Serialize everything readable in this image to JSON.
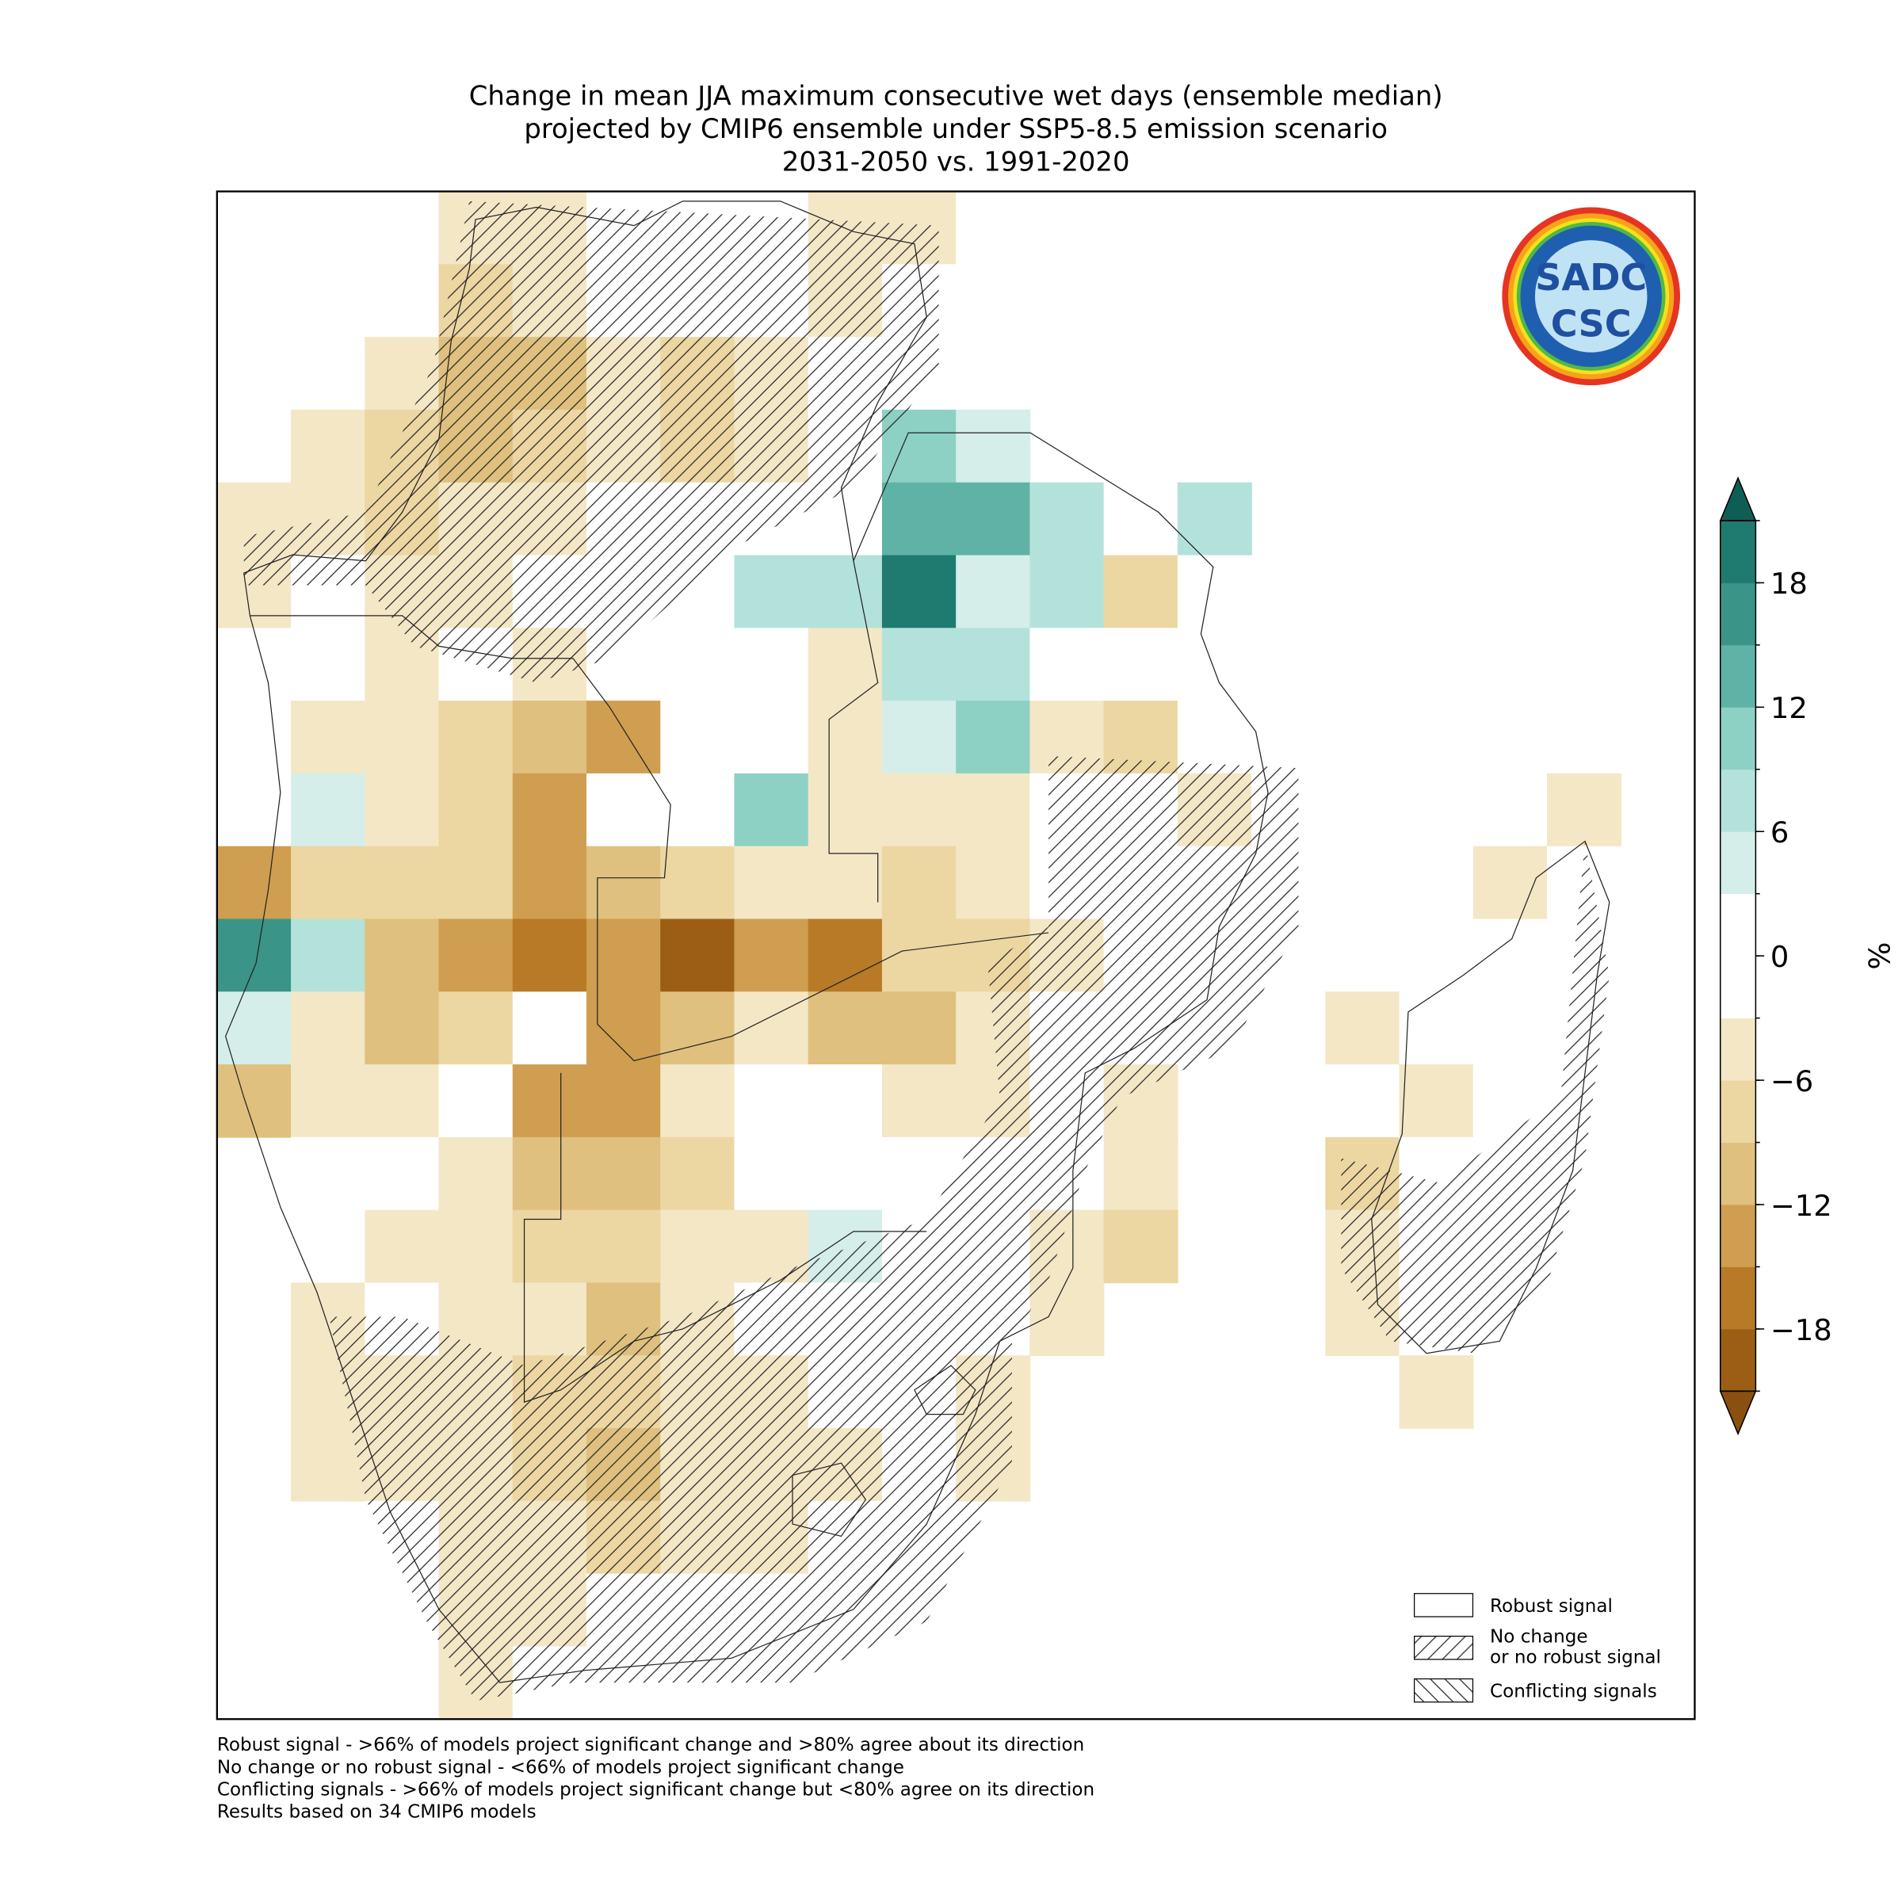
{
  "map": {
    "title": [
      "Change in mean JJA maximum consecutive wet days (ensemble median)",
      "projected by CMIP6 ensemble under SSP5-8.5 emission scenario",
      "2031-2050 vs. 1991-2020"
    ],
    "logo": {
      "top": "SADC",
      "bottom": "CSC"
    },
    "grid": {
      "rows": [
        [
          null,
          null,
          null,
          -6,
          -6,
          0,
          -3,
          -3,
          -6,
          -6,
          -3,
          null,
          null,
          null,
          null,
          null,
          null,
          null,
          null,
          null
        ],
        [
          null,
          null,
          null,
          -8,
          -6,
          0,
          -3,
          -3,
          -6,
          -3,
          -3,
          null,
          null,
          null,
          null,
          null,
          null,
          null,
          null,
          null
        ],
        [
          null,
          null,
          -6,
          -12,
          -10,
          -6,
          -8,
          -6,
          0,
          -3,
          -3,
          null,
          null,
          null,
          null,
          null,
          null,
          null,
          null,
          null
        ],
        [
          null,
          -6,
          -8,
          -10,
          -8,
          -6,
          -8,
          -6,
          0,
          9,
          3,
          null,
          null,
          null,
          null,
          null,
          null,
          null,
          null,
          null
        ],
        [
          -6,
          -6,
          -8,
          -6,
          -6,
          -3,
          0,
          0,
          0,
          12,
          12,
          6,
          0,
          6,
          null,
          null,
          null,
          null,
          null,
          null
        ],
        [
          -6,
          -3,
          -6,
          -6,
          -3,
          -3,
          0,
          6,
          6,
          20,
          3,
          6,
          -9,
          -3,
          null,
          null,
          null,
          null,
          null,
          null
        ],
        [
          -3,
          -3,
          -6,
          -3,
          -6,
          -3,
          0,
          0,
          -6,
          6,
          6,
          0,
          -3,
          0,
          -3,
          null,
          null,
          null,
          null,
          null
        ],
        [
          -3,
          -6,
          -6,
          -9,
          -12,
          -15,
          -3,
          0,
          -6,
          3,
          9,
          -6,
          -9,
          -3,
          -3,
          null,
          null,
          null,
          null,
          null
        ],
        [
          -3,
          3,
          -6,
          -9,
          -15,
          -3,
          0,
          9,
          -6,
          -6,
          -6,
          -3,
          -3,
          -6,
          -3,
          null,
          null,
          null,
          -6,
          null
        ],
        [
          -15,
          -9,
          -9,
          -9,
          -15,
          -12,
          -9,
          -6,
          -6,
          -9,
          -6,
          -3,
          -3,
          -3,
          -3,
          null,
          null,
          -6,
          -3,
          null
        ],
        [
          15,
          6,
          -12,
          -15,
          -18,
          -15,
          -21,
          -15,
          -18,
          -9,
          -9,
          -6,
          -3,
          -3,
          -3,
          null,
          null,
          -3,
          0,
          0
        ],
        [
          3,
          -6,
          -12,
          -9,
          -3,
          -15,
          -12,
          -6,
          -12,
          -12,
          -6,
          -3,
          -3,
          null,
          null,
          -6,
          0,
          -3,
          -3,
          null
        ],
        [
          -12,
          -6,
          -6,
          -3,
          -15,
          -15,
          -6,
          -3,
          -3,
          -6,
          -6,
          -3,
          -6,
          null,
          null,
          -3,
          -6,
          -3,
          -3,
          null
        ],
        [
          null,
          -3,
          0,
          -6,
          -12,
          -12,
          -9,
          0,
          -3,
          -3,
          -3,
          -3,
          -6,
          null,
          null,
          -9,
          -3,
          -3,
          -3,
          null
        ],
        [
          null,
          -3,
          -6,
          -6,
          -9,
          -9,
          -6,
          -6,
          3,
          -3,
          -3,
          -6,
          -9,
          null,
          null,
          -6,
          0,
          -3,
          null,
          null
        ],
        [
          null,
          -6,
          -3,
          -6,
          -6,
          -12,
          -6,
          -3,
          -3,
          -3,
          -3,
          -6,
          null,
          null,
          null,
          -6,
          -3,
          -3,
          null,
          null
        ],
        [
          null,
          -6,
          -6,
          -6,
          -9,
          -9,
          -6,
          -6,
          -3,
          -3,
          -6,
          null,
          null,
          null,
          null,
          null,
          -6,
          null,
          null,
          null
        ],
        [
          null,
          -6,
          -6,
          -6,
          -9,
          -12,
          -6,
          -6,
          -6,
          -3,
          -6,
          null,
          null,
          null,
          null,
          null,
          null,
          null,
          null,
          null
        ],
        [
          null,
          null,
          -3,
          -6,
          -6,
          -9,
          -6,
          -6,
          -3,
          -3,
          null,
          null,
          null,
          null,
          null,
          null,
          null,
          null,
          null,
          null
        ],
        [
          null,
          null,
          null,
          -6,
          -6,
          0,
          -3,
          -3,
          -3,
          null,
          null,
          null,
          null,
          null,
          null,
          null,
          null,
          null,
          null,
          null
        ],
        [
          null,
          null,
          null,
          -6,
          -3,
          -3,
          -3,
          -3,
          null,
          null,
          null,
          null,
          null,
          null,
          null,
          null,
          null,
          null,
          null,
          null
        ]
      ]
    },
    "colorbar": {
      "label": "%",
      "levels": [
        -21,
        -18,
        -15,
        -12,
        -9,
        -6,
        -3,
        0,
        3,
        6,
        9,
        12,
        15,
        18,
        21
      ],
      "colors": [
        "#9c5e14",
        "#b87a26",
        "#cf9e50",
        "#dfc07e",
        "#ecd6a2",
        "#f4e7c6",
        "#ffffff",
        "#ffffff",
        "#d5eeea",
        "#b3e2da",
        "#8dd1c4",
        "#5fb3a6",
        "#3a9488",
        "#1f7a70"
      ],
      "extend_colors": [
        "#8a5010",
        "#0f5e56"
      ],
      "ticks": [
        {
          "value": -18,
          "label": "−18"
        },
        {
          "value": -12,
          "label": "−12"
        },
        {
          "value": -6,
          "label": "−6"
        },
        0,
        6,
        12,
        18
      ]
    },
    "legend": [
      {
        "label": [
          "Robust signal"
        ]
      },
      {
        "label": [
          "No change",
          "or no robust signal"
        ]
      },
      {
        "label": [
          "Conflicting signals"
        ]
      }
    ],
    "notes": [
      "Robust signal - >66% of models project significant change and >80% agree about its direction",
      "No change or no robust signal - <66% of models project significant change",
      "Conflicting signals - >66% of models project significant change but <80% agree on its direction",
      "Results based on 34 CMIP6 models"
    ]
  }
}
